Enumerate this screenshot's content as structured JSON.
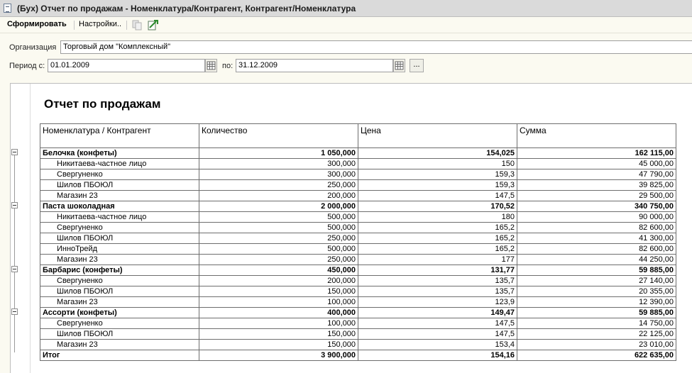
{
  "window": {
    "title": "(Бух) Отчет по продажам - Номенклатура/Контрагент, Контрагент/Номенклатура"
  },
  "toolbar": {
    "generate_label": "Сформировать",
    "settings_label": "Настройки.."
  },
  "form": {
    "org_label": "Организация",
    "org_value": "Торговый дом \"Комплексный\"",
    "period_from_label": "Период с:",
    "period_from_value": "01.01.2009",
    "period_to_label": "по:",
    "period_to_value": "31.12.2009",
    "period_select_label": "..."
  },
  "report": {
    "title": "Отчет по продажам",
    "columns": [
      "Номенклатура / Контрагент",
      "Количество",
      "Цена",
      "Сумма"
    ],
    "groups": [
      {
        "name": "Белочка (конфеты)",
        "qty": "1 050,000",
        "price": "154,025",
        "sum": "162 115,00",
        "rows": [
          {
            "name": "Никитаева-частное лицо",
            "qty": "300,000",
            "price": "150",
            "sum": "45 000,00"
          },
          {
            "name": "Свергуненко",
            "qty": "300,000",
            "price": "159,3",
            "sum": "47 790,00"
          },
          {
            "name": "Шилов ПБОЮЛ",
            "qty": "250,000",
            "price": "159,3",
            "sum": "39 825,00"
          },
          {
            "name": "Магазин 23",
            "qty": "200,000",
            "price": "147,5",
            "sum": "29 500,00"
          }
        ]
      },
      {
        "name": "Паста шоколадная",
        "qty": "2 000,000",
        "price": "170,52",
        "sum": "340 750,00",
        "rows": [
          {
            "name": "Никитаева-частное лицо",
            "qty": "500,000",
            "price": "180",
            "sum": "90 000,00"
          },
          {
            "name": "Свергуненко",
            "qty": "500,000",
            "price": "165,2",
            "sum": "82 600,00"
          },
          {
            "name": "Шилов ПБОЮЛ",
            "qty": "250,000",
            "price": "165,2",
            "sum": "41 300,00"
          },
          {
            "name": "ИнноТрейд",
            "qty": "500,000",
            "price": "165,2",
            "sum": "82 600,00"
          },
          {
            "name": "Магазин 23",
            "qty": "250,000",
            "price": "177",
            "sum": "44 250,00"
          }
        ]
      },
      {
        "name": "Барбарис (конфеты)",
        "qty": "450,000",
        "price": "131,77",
        "sum": "59 885,00",
        "rows": [
          {
            "name": "Свергуненко",
            "qty": "200,000",
            "price": "135,7",
            "sum": "27 140,00"
          },
          {
            "name": "Шилов ПБОЮЛ",
            "qty": "150,000",
            "price": "135,7",
            "sum": "20 355,00"
          },
          {
            "name": "Магазин 23",
            "qty": "100,000",
            "price": "123,9",
            "sum": "12 390,00"
          }
        ]
      },
      {
        "name": "Ассорти (конфеты)",
        "qty": "400,000",
        "price": "149,47",
        "sum": "59 885,00",
        "rows": [
          {
            "name": "Свергуненко",
            "qty": "100,000",
            "price": "147,5",
            "sum": "14 750,00"
          },
          {
            "name": "Шилов ПБОЮЛ",
            "qty": "150,000",
            "price": "147,5",
            "sum": "22 125,00"
          },
          {
            "name": "Магазин 23",
            "qty": "150,000",
            "price": "153,4",
            "sum": "23 010,00"
          }
        ]
      }
    ],
    "total": {
      "name": "Итог",
      "qty": "3 900,000",
      "price": "154,16",
      "sum": "622 635,00"
    }
  }
}
